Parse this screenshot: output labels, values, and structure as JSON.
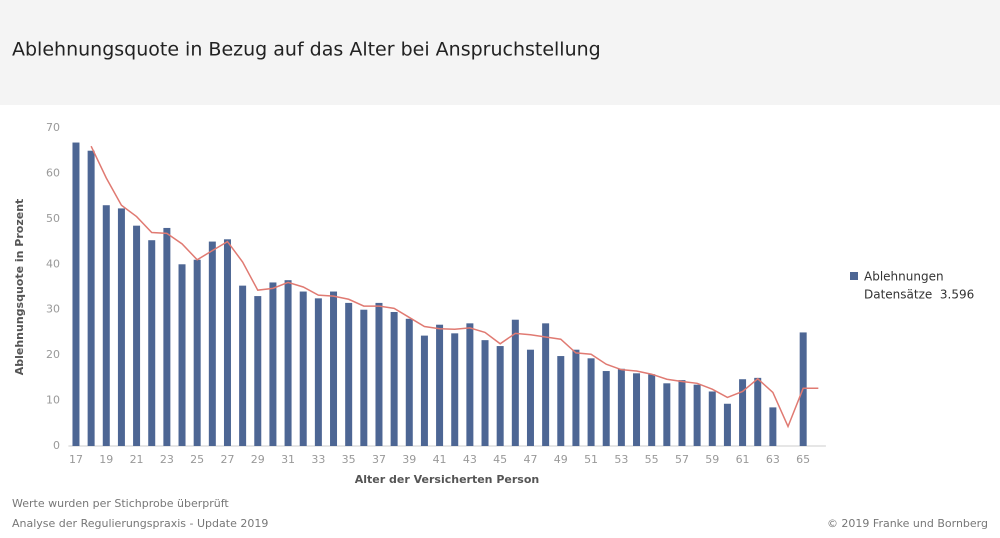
{
  "chart_data": {
    "type": "bar",
    "title": "Ablehnungsquote in Bezug auf das Alter bei Anspruchstellung",
    "x_label": "Alter der Versicherten Person",
    "y_label": "Ablehnungsquote in Prozent",
    "categories": [
      "17",
      null,
      "19",
      null,
      "21",
      null,
      "23",
      null,
      "25",
      null,
      "27",
      null,
      "29",
      null,
      "31",
      null,
      "33",
      null,
      "35",
      null,
      "37",
      null,
      "39",
      null,
      "41",
      null,
      "43",
      null,
      "45",
      null,
      "47",
      null,
      "49",
      null,
      "51",
      null,
      "53",
      null,
      "55",
      null,
      "57",
      null,
      "59",
      null,
      "61",
      null,
      "63",
      null,
      "65",
      null
    ],
    "series": [
      {
        "name": "Ablehnungen",
        "type": "bar",
        "color": "#4d6694",
        "values": [
          66.8,
          65,
          53,
          52.3,
          48.5,
          45.3,
          48,
          40,
          41,
          45,
          45.5,
          35.3,
          33,
          36,
          36.5,
          34,
          32.5,
          34,
          31.5,
          30,
          31.5,
          29.5,
          28,
          24.3,
          26.7,
          24.8,
          27,
          23.3,
          22,
          27.8,
          21.2,
          27,
          19.8,
          21.2,
          19.3,
          16.5,
          17,
          16,
          15.8,
          13.8,
          14.5,
          13.5,
          12,
          9.3,
          14.7,
          15,
          8.5,
          null,
          25,
          null
        ]
      },
      {
        "type": "line",
        "color": "#e07a72",
        "values": [
          null,
          66,
          59,
          53,
          50.5,
          47,
          46.8,
          44.5,
          41,
          43,
          45,
          40.5,
          34.3,
          34.7,
          36,
          35,
          33.2,
          33,
          32.3,
          30.8,
          30.8,
          30.3,
          28.3,
          26.3,
          25.8,
          25.7,
          26,
          25,
          22.5,
          24.8,
          24.5,
          24,
          23.5,
          20.5,
          20.2,
          18,
          16.8,
          16.5,
          15.8,
          14.7,
          14.2,
          13.8,
          12.5,
          10.7,
          12,
          14.8,
          11.8,
          4.3,
          12.7,
          12.7
        ]
      }
    ],
    "legend_note": "Datensätze  3.596",
    "legend_position": "right",
    "ylim": [
      0,
      70
    ],
    "yticks": [
      0,
      10,
      20,
      30,
      40,
      50,
      60,
      70
    ],
    "grid": false,
    "footnotes": [
      "Werte wurden per Stichprobe überprüft",
      "Analyse der Regulierungspraxis - Update 2019"
    ],
    "copyright": "© 2019 Franke und Bornberg"
  }
}
